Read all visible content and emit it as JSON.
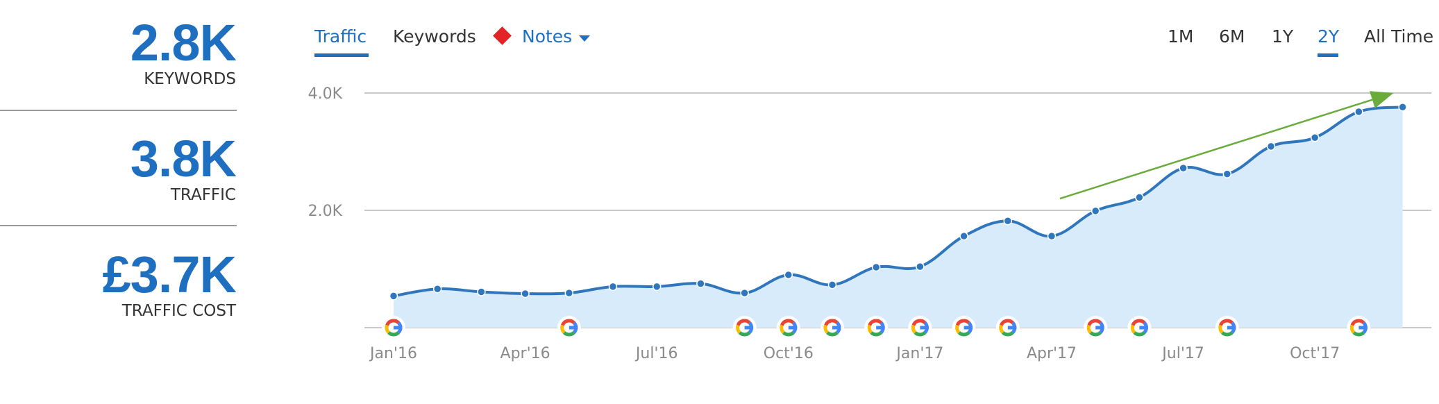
{
  "metrics": [
    {
      "value": "2.8K",
      "label": "KEYWORDS"
    },
    {
      "value": "3.8K",
      "label": "TRAFFIC"
    },
    {
      "value": "£3.7K",
      "label": "TRAFFIC COST"
    }
  ],
  "tabs": {
    "traffic": "Traffic",
    "keywords": "Keywords",
    "notes": "Notes",
    "notes_icon": "red-diamond",
    "notes_caret_icon": "caret-down"
  },
  "ranges": [
    "1M",
    "6M",
    "1Y",
    "2Y",
    "All Time"
  ],
  "active_range": "2Y",
  "colors": {
    "accent": "#1f6fc1",
    "line": "#2f76bd",
    "area": "#d8ebfa",
    "trend": "#6aac3c",
    "note": "#e42326"
  },
  "chart_data": {
    "type": "area",
    "x_ticks": [
      "Jan'16",
      "Apr'16",
      "Jul'16",
      "Oct'16",
      "Jan'17",
      "Apr'17",
      "Jul'17",
      "Oct'17"
    ],
    "y_ticks": [
      "4.0K",
      "2.0K"
    ],
    "ylim": [
      0,
      4000
    ],
    "grid": true,
    "series": [
      {
        "x": [
          "2016-01-01",
          "2016-02-01",
          "2016-03-01",
          "2016-04-01",
          "2016-05-01",
          "2016-06-01",
          "2016-07-01",
          "2016-08-01",
          "2016-09-01",
          "2016-10-01",
          "2016-11-01",
          "2016-12-01",
          "2017-01-01",
          "2017-02-01",
          "2017-03-01",
          "2017-04-01",
          "2017-05-01",
          "2017-06-01",
          "2017-07-01",
          "2017-08-01",
          "2017-09-01",
          "2017-10-01",
          "2017-11-01",
          "2017-12-01"
        ],
        "values": [
          540,
          660,
          610,
          580,
          590,
          700,
          700,
          750,
          590,
          900,
          730,
          1030,
          1040,
          1560,
          1820,
          1560,
          1990,
          2220,
          2720,
          2620,
          3090,
          3240,
          3680,
          3760
        ]
      }
    ],
    "google_update_markers": [
      "2016-01-01",
      "2016-05-01",
      "2016-09-01",
      "2016-10-01",
      "2016-11-01",
      "2016-12-01",
      "2017-01-01",
      "2017-02-01",
      "2017-03-01",
      "2017-05-01",
      "2017-06-01",
      "2017-08-01",
      "2017-11-01"
    ],
    "trend_arrow": {
      "from": [
        "2017-04-01",
        2200
      ],
      "to": [
        "2017-11-01",
        4000
      ]
    }
  }
}
